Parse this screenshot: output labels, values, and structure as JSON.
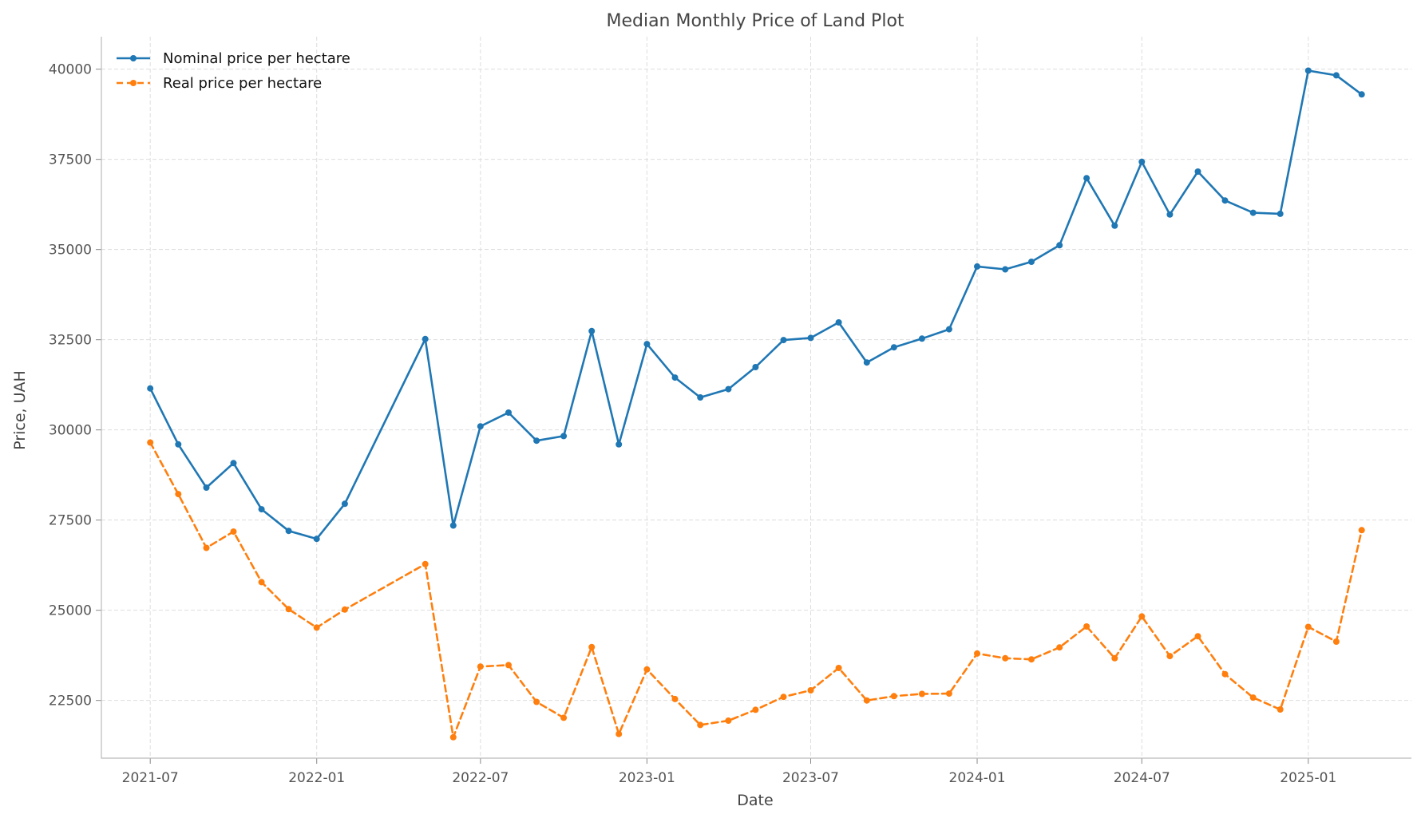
{
  "chart_data": {
    "type": "line",
    "title": "Median Monthly Price of Land Plot",
    "xlabel": "Date",
    "ylabel": "Price, UAH",
    "x": [
      "2021-07",
      "2021-08",
      "2021-09",
      "2021-10",
      "2021-11",
      "2021-12",
      "2022-01",
      "2022-02",
      "2022-05",
      "2022-06",
      "2022-07",
      "2022-08",
      "2022-09",
      "2022-10",
      "2022-11",
      "2022-12",
      "2023-01",
      "2023-02",
      "2023-03",
      "2023-04",
      "2023-05",
      "2023-06",
      "2023-07",
      "2023-08",
      "2023-09",
      "2023-10",
      "2023-11",
      "2023-12",
      "2024-01",
      "2024-02",
      "2024-03",
      "2024-04",
      "2024-05",
      "2024-06",
      "2024-07",
      "2024-08",
      "2024-09",
      "2024-10",
      "2024-11",
      "2024-12",
      "2025-01",
      "2025-02",
      "2025-03"
    ],
    "series": [
      {
        "name": "Nominal price per hectare",
        "color": "#1f77b4",
        "line_style": "solid",
        "marker": "circle",
        "values": [
          31150,
          29600,
          28400,
          29080,
          27800,
          27200,
          26980,
          27950,
          32520,
          27350,
          30100,
          30480,
          29700,
          29830,
          32740,
          29600,
          32380,
          31450,
          30900,
          31130,
          31740,
          32490,
          32550,
          32980,
          31870,
          32290,
          32530,
          32790,
          34530,
          34450,
          34660,
          35120,
          36980,
          35660,
          37430,
          35970,
          37160,
          36360,
          36020,
          35990,
          39960,
          39830,
          39300
        ]
      },
      {
        "name": "Real price per hectare",
        "color": "#ff7f0e",
        "line_style": "dashed",
        "marker": "circle",
        "values": [
          29650,
          28220,
          26730,
          27180,
          25780,
          25030,
          24520,
          25020,
          26280,
          21480,
          23440,
          23480,
          22460,
          22020,
          23980,
          21570,
          23360,
          22540,
          21820,
          21940,
          22240,
          22600,
          22780,
          23400,
          22500,
          22620,
          22680,
          22690,
          23800,
          23670,
          23640,
          23970,
          24550,
          23670,
          24830,
          23730,
          24280,
          23230,
          22580,
          22250,
          24540,
          24130,
          27220
        ]
      }
    ],
    "x_ticks": [
      "2021-07",
      "2022-01",
      "2022-07",
      "2023-01",
      "2023-07",
      "2024-01",
      "2024-07",
      "2025-01"
    ],
    "y_ticks": [
      22500,
      25000,
      27500,
      30000,
      32500,
      35000,
      37500,
      40000
    ],
    "xlim": [
      "2021-05-08",
      "2025-04-25"
    ],
    "ylim": [
      20900,
      40900
    ],
    "grid": true,
    "legend_position": "top-left"
  }
}
